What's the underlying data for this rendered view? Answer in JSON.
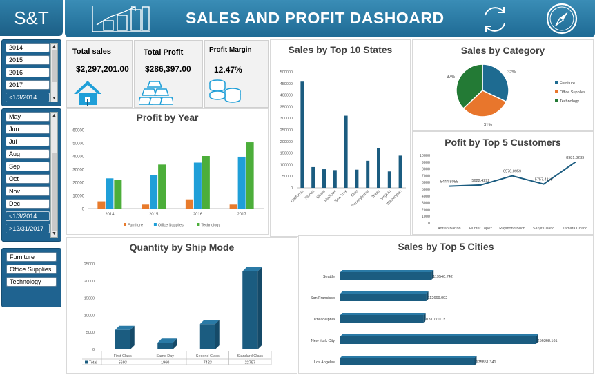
{
  "app": {
    "logo_text": "S&T",
    "title": "SALES AND PROFIT DASHOARD"
  },
  "icons": {
    "header_chart": "bar-chart-icon",
    "refresh": "refresh-icon",
    "compass": "compass-icon",
    "kpi1": "house-icon",
    "kpi2": "gold-bars-icon",
    "kpi3": "coins-icon"
  },
  "colors": {
    "accent": "#1f6390",
    "bar": "#1b5c80",
    "furniture": "#e87b2c",
    "office": "#1f9fd8",
    "technology": "#4cae3a",
    "pie_furniture": "#1e6b91",
    "pie_office": "#e8762c",
    "pie_technology": "#237a35"
  },
  "slicers": {
    "year": {
      "items": [
        "2014",
        "2015",
        "2016",
        "2017",
        "<1/3/2014"
      ]
    },
    "month": {
      "items": [
        "May",
        "Jun",
        "Jul",
        "Aug",
        "Sep",
        "Oct",
        "Nov",
        "Dec",
        "<1/3/2014",
        ">12/31/2017"
      ]
    },
    "category": {
      "items": [
        "Furniture",
        "Office Supplies",
        "Technology"
      ]
    }
  },
  "kpis": [
    {
      "label": "Total sales",
      "value": "$2,297,201.00"
    },
    {
      "label": "Total Profit",
      "value": "$286,397.00"
    },
    {
      "label": "Profit Margin",
      "value": "12.47%"
    }
  ],
  "panels": {
    "profit_by_year": "Profit by Year",
    "sales_by_states": "Sales by Top 10 States",
    "sales_by_category": "Sales by Category",
    "profit_by_customers": "Pofit by Top 5 Customers",
    "quantity_by_ship": "Quantity by Ship Mode",
    "sales_by_cities": "Sales by Top 5 Cities"
  },
  "chart_data": [
    {
      "id": "profit_by_year",
      "type": "bar",
      "title": "Profit by Year",
      "categories": [
        "2014",
        "2015",
        "2016",
        "2017"
      ],
      "series": [
        {
          "name": "Furniture",
          "values": [
            5500,
            3000,
            7000,
            3000
          ]
        },
        {
          "name": "Office Supplies",
          "values": [
            23000,
            25500,
            35000,
            39500
          ]
        },
        {
          "name": "Technology",
          "values": [
            22000,
            33500,
            40000,
            50500
          ]
        }
      ],
      "ylim": [
        0,
        60000
      ],
      "yticks": [
        "0",
        "10000",
        "20000",
        "30000",
        "40000",
        "50000",
        "60000"
      ],
      "legend": "bottom"
    },
    {
      "id": "sales_by_states",
      "type": "bar",
      "title": "Sales by Top 10 States",
      "categories": [
        "California",
        "Florida",
        "Illinois",
        "Michigan",
        "New York",
        "Ohio",
        "Pennsylvania",
        "Texas",
        "Virginia",
        "Washington"
      ],
      "values": [
        457688,
        89474,
        80166,
        76270,
        310876,
        78258,
        116512,
        170188,
        70637,
        138641
      ],
      "ylim": [
        0,
        500000
      ],
      "yticks": [
        "0",
        "50000",
        "100000",
        "150000",
        "200000",
        "250000",
        "300000",
        "350000",
        "400000",
        "450000",
        "500000"
      ]
    },
    {
      "id": "sales_by_category",
      "type": "pie",
      "title": "Sales by Category",
      "labels": [
        "Furniture",
        "Office Supplies",
        "Technology"
      ],
      "values": [
        32,
        31,
        37
      ],
      "value_labels": [
        "32%",
        "31%",
        "37%"
      ],
      "legend": "right"
    },
    {
      "id": "profit_by_customers",
      "type": "line",
      "title": "Pofit by Top 5 Customers",
      "categories": [
        "Adrian Barton",
        "Hunter Lopez",
        "Raymond Buch",
        "Sanjit Chand",
        "Tamara Chand"
      ],
      "values": [
        5444.8055,
        5622.4292,
        6976.0959,
        5757.4119,
        8981.3239
      ],
      "value_labels": [
        "5444.8055",
        "5622.4292",
        "6976.0959",
        "5757.4119",
        "8981.3239"
      ],
      "ylim": [
        0,
        10000
      ],
      "yticks": [
        "0",
        "1000",
        "2000",
        "3000",
        "4000",
        "5000",
        "6000",
        "7000",
        "8000",
        "9000",
        "10000"
      ]
    },
    {
      "id": "quantity_by_ship",
      "type": "bar",
      "title": "Quantity by Ship Mode",
      "categories": [
        "First Class",
        "Same Day",
        "Second Class",
        "Standard Class"
      ],
      "values": [
        5693,
        1960,
        7423,
        22797
      ],
      "value_labels": [
        "5693",
        "1960",
        "7423",
        "22797"
      ],
      "table_label": "Total",
      "ylim": [
        0,
        25000
      ],
      "yticks": [
        "0",
        "5000",
        "10000",
        "15000",
        "20000",
        "25000"
      ]
    },
    {
      "id": "sales_by_cities",
      "type": "bar",
      "title": "Sales by Top 5 Cities",
      "categories": [
        "Seattle",
        "San Francisco",
        "Philadelphia",
        "New York City",
        "Los Angeles"
      ],
      "values": [
        119540.742,
        112669.092,
        109077.013,
        256368.161,
        175851.341
      ],
      "value_labels": [
        "119540.742",
        "112669.092",
        "109077.013",
        "256368.161",
        "175851.341"
      ],
      "orientation": "horizontal"
    }
  ]
}
